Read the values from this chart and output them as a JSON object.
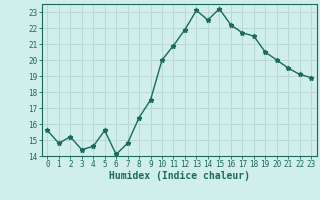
{
  "x": [
    0,
    1,
    2,
    3,
    4,
    5,
    6,
    7,
    8,
    9,
    10,
    11,
    12,
    13,
    14,
    15,
    16,
    17,
    18,
    19,
    20,
    21,
    22,
    23
  ],
  "y": [
    15.6,
    14.8,
    15.2,
    14.4,
    14.6,
    15.6,
    14.1,
    14.8,
    16.4,
    17.5,
    20.0,
    20.9,
    21.9,
    23.1,
    22.5,
    23.2,
    22.2,
    21.7,
    21.5,
    20.5,
    20.0,
    19.5,
    19.1,
    18.9
  ],
  "line_color": "#1a6b5a",
  "marker": "*",
  "bg_color": "#d0eeeb",
  "grid_color": "#b8d8d4",
  "axis_color": "#1a6b5a",
  "xlabel": "Humidex (Indice chaleur)",
  "ylim": [
    14,
    23.5
  ],
  "xlim": [
    -0.5,
    23.5
  ],
  "yticks": [
    14,
    15,
    16,
    17,
    18,
    19,
    20,
    21,
    22,
    23
  ],
  "xticks": [
    0,
    1,
    2,
    3,
    4,
    5,
    6,
    7,
    8,
    9,
    10,
    11,
    12,
    13,
    14,
    15,
    16,
    17,
    18,
    19,
    20,
    21,
    22,
    23
  ],
  "tick_fontsize": 5.5,
  "xlabel_fontsize": 7.0,
  "linewidth": 1.0,
  "markersize": 3.5
}
